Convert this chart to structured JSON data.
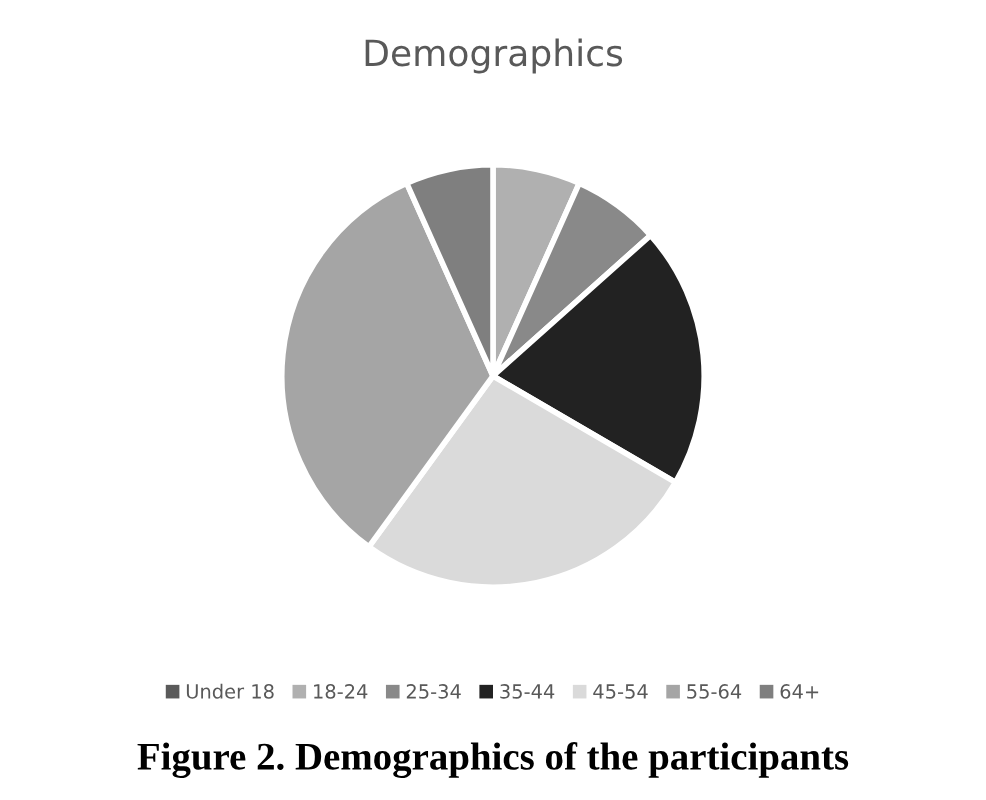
{
  "chart_data": {
    "type": "pie",
    "title": "Demographics",
    "categories": [
      "Under 18",
      "18-24",
      "25-34",
      "35-44",
      "45-54",
      "55-64",
      "64+"
    ],
    "values": [
      0,
      6.7,
      6.7,
      20,
      26.6,
      33.3,
      6.7
    ],
    "colors": [
      "#5a5a5a",
      "#b0b0b0",
      "#898989",
      "#222222",
      "#dadada",
      "#a5a5a5",
      "#7f7f7f"
    ],
    "legend": "bottom",
    "annotations": [
      "Figure 2. Demographics of the participants"
    ]
  }
}
